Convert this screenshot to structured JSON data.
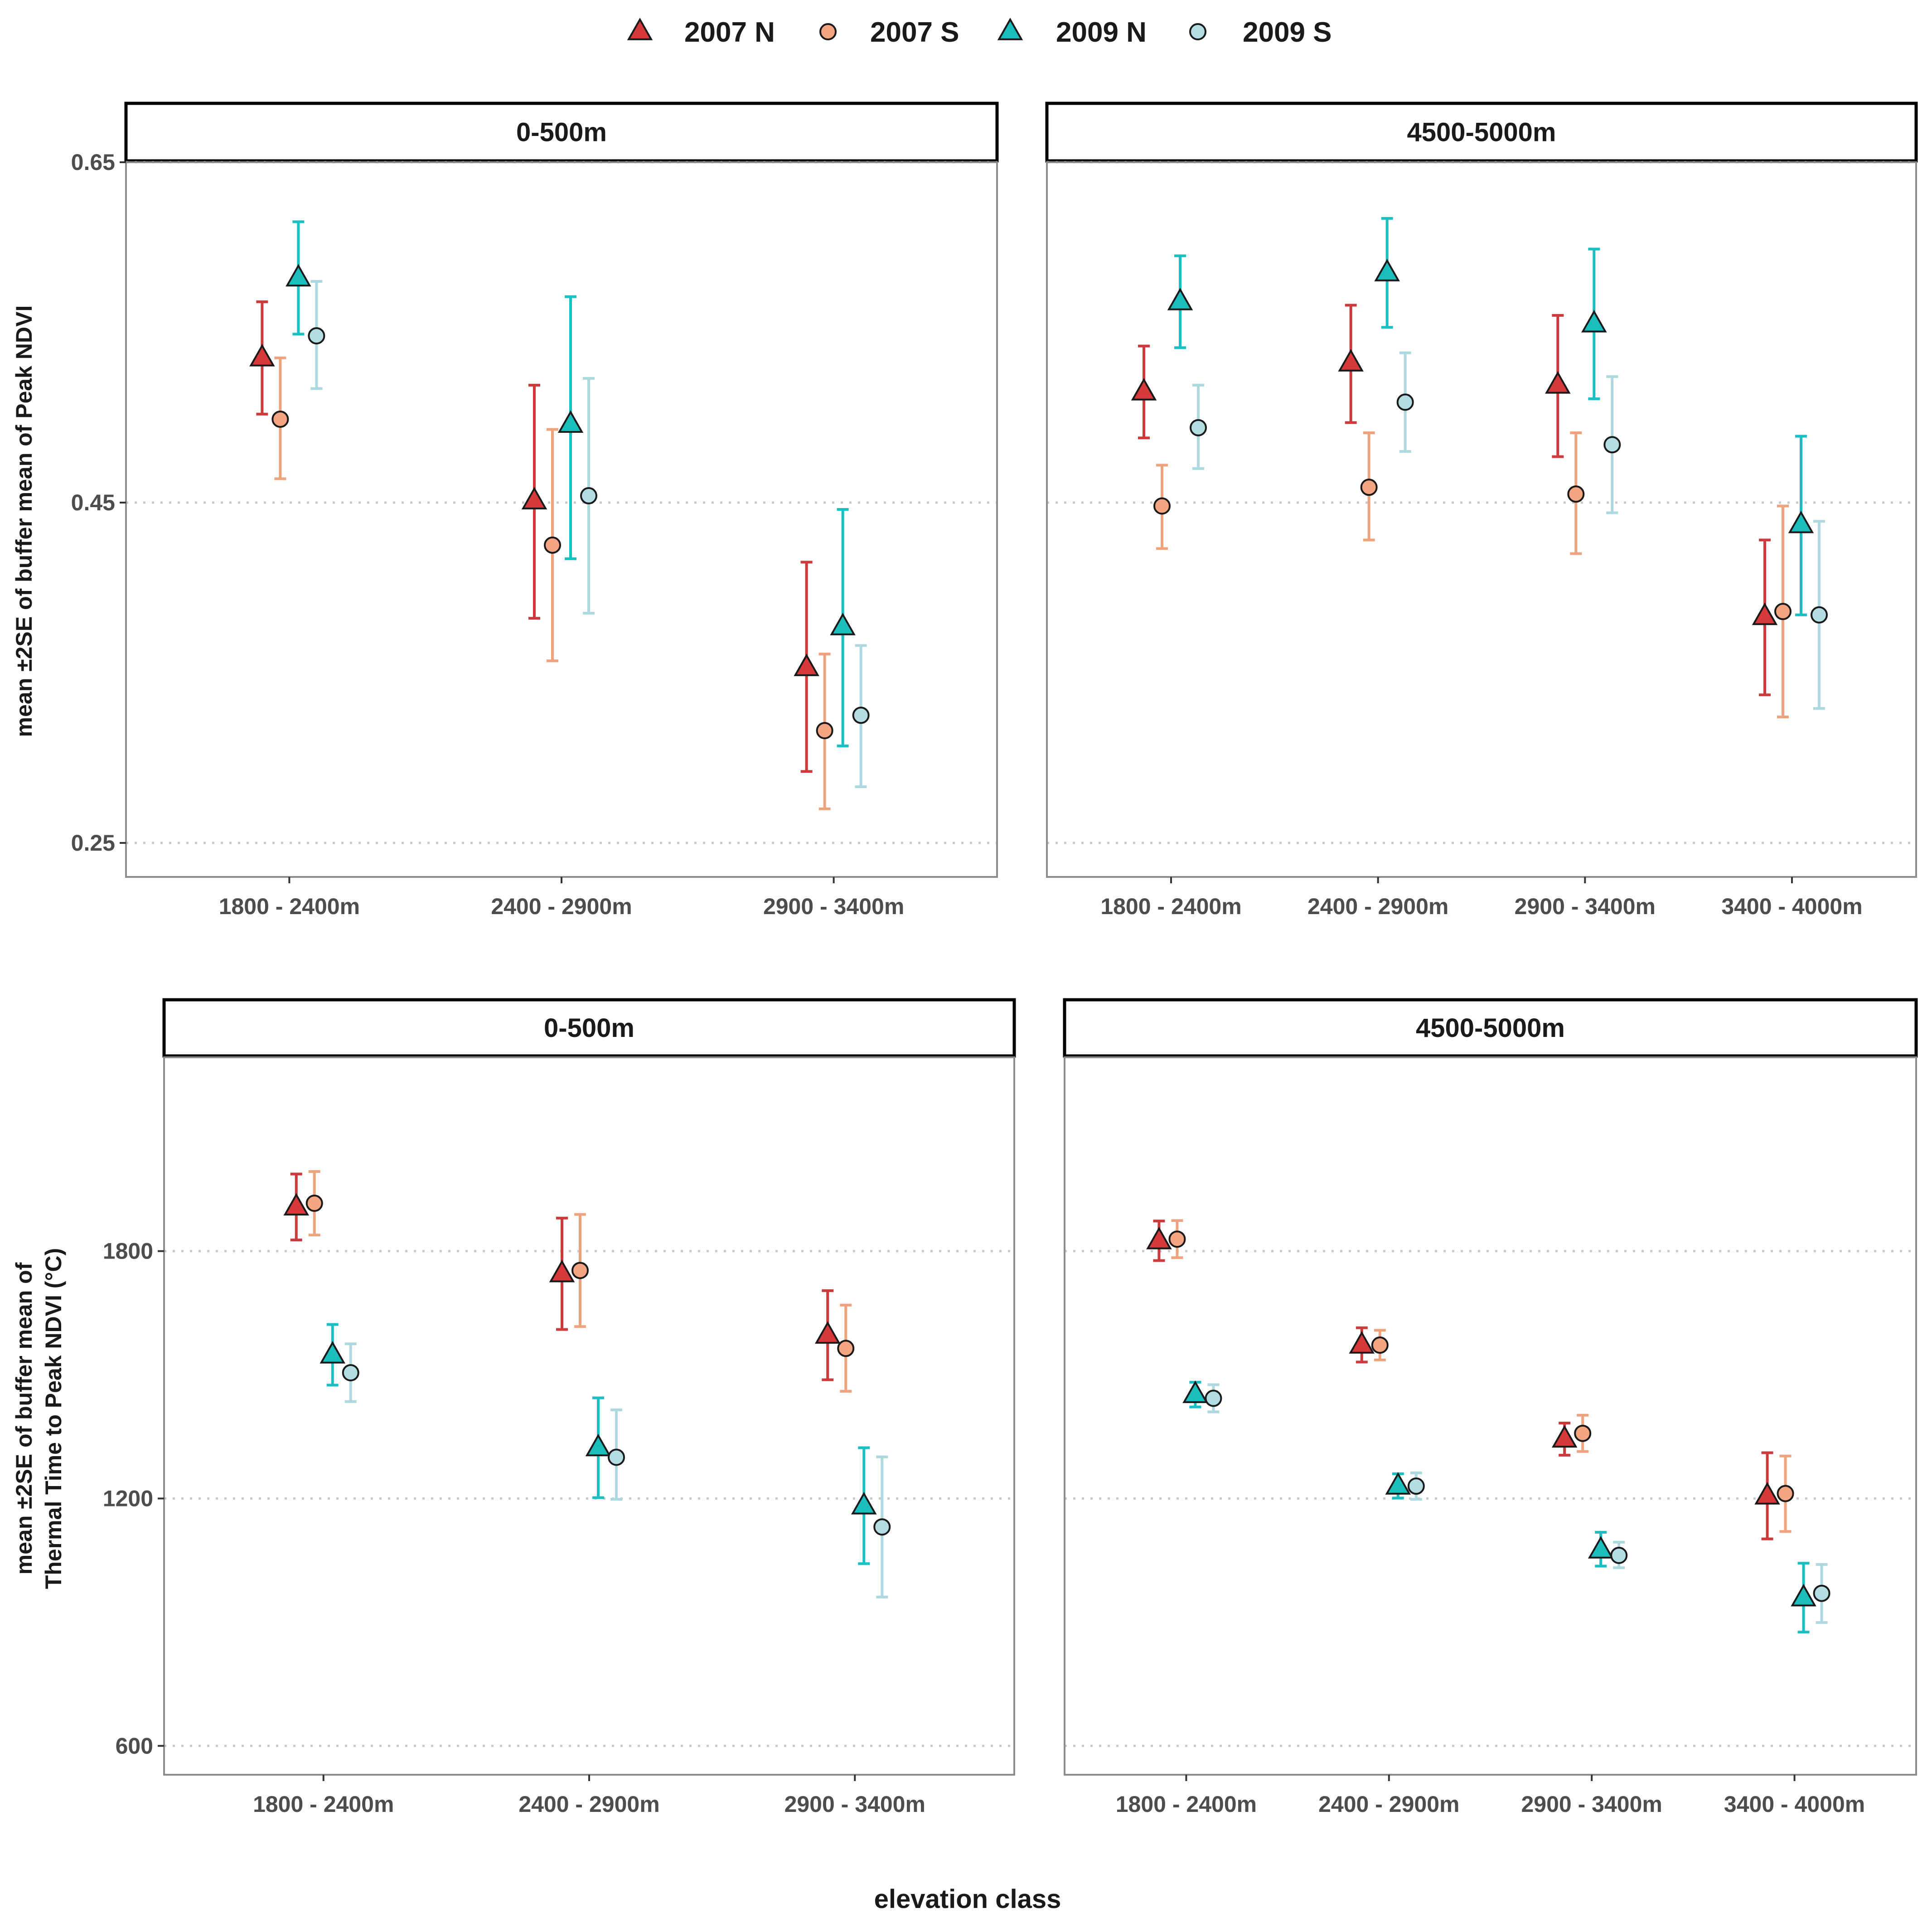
{
  "legend": {
    "items": [
      {
        "label": "2007 N",
        "shape": "triangle",
        "color": "#D7393B",
        "errcolor": "#CC3A3C"
      },
      {
        "label": "2007 S",
        "shape": "circle",
        "color": "#F4A582",
        "errcolor": "#EEA37F"
      },
      {
        "label": "2009 N",
        "shape": "triangle",
        "color": "#1CBDBD",
        "errcolor": "#19BFC2"
      },
      {
        "label": "2009 S",
        "shape": "circle",
        "color": "#B3DCE3",
        "errcolor": "#ADD8E0"
      }
    ]
  },
  "xlabel": "elevation class",
  "chart_data": [
    {
      "type": "scatter",
      "row": 0,
      "ylabel": "mean ±2SE of buffer mean of Peak NDVI",
      "ylim": [
        0.23,
        0.65
      ],
      "yticks": [
        0.25,
        0.45,
        0.65
      ],
      "ytick_labels": [
        "0.25",
        "0.45",
        "0.65"
      ],
      "grid": "horizontal dotted",
      "panels": [
        {
          "strip": "0-500m",
          "categories": [
            "1800 - 2400m",
            "2400 - 2900m",
            "2900 - 3400m"
          ],
          "series": [
            {
              "name": "2007 N",
              "values": [
                0.535,
                0.451,
                0.353
              ],
              "lower": [
                0.502,
                0.382,
                0.292
              ],
              "upper": [
                0.568,
                0.519,
                0.415
              ]
            },
            {
              "name": "2007 S",
              "values": [
                0.499,
                0.425,
                0.316
              ],
              "lower": [
                0.464,
                0.357,
                0.27
              ],
              "upper": [
                0.535,
                0.493,
                0.361
              ]
            },
            {
              "name": "2009 N",
              "values": [
                0.582,
                0.496,
                0.377
              ],
              "lower": [
                0.549,
                0.417,
                0.307
              ],
              "upper": [
                0.615,
                0.571,
                0.446
              ]
            },
            {
              "name": "2009 S",
              "values": [
                0.548,
                0.454,
                0.325
              ],
              "lower": [
                0.517,
                0.385,
                0.283
              ],
              "upper": [
                0.58,
                0.523,
                0.366
              ]
            }
          ]
        },
        {
          "strip": "4500-5000m",
          "categories": [
            "1800 - 2400m",
            "2400 - 2900m",
            "2900 - 3400m",
            "3400 - 4000m"
          ],
          "series": [
            {
              "name": "2007 N",
              "values": [
                0.515,
                0.532,
                0.519,
                0.383
              ],
              "lower": [
                0.488,
                0.497,
                0.477,
                0.337
              ],
              "upper": [
                0.542,
                0.566,
                0.56,
                0.428
              ]
            },
            {
              "name": "2007 S",
              "values": [
                0.448,
                0.459,
                0.455,
                0.386
              ],
              "lower": [
                0.423,
                0.428,
                0.42,
                0.324
              ],
              "upper": [
                0.472,
                0.491,
                0.491,
                0.448
              ]
            },
            {
              "name": "2009 N",
              "values": [
                0.568,
                0.585,
                0.555,
                0.437
              ],
              "lower": [
                0.541,
                0.553,
                0.511,
                0.384
              ],
              "upper": [
                0.595,
                0.617,
                0.599,
                0.489
              ]
            },
            {
              "name": "2009 S",
              "values": [
                0.494,
                0.509,
                0.484,
                0.384
              ],
              "lower": [
                0.47,
                0.48,
                0.444,
                0.329
              ],
              "upper": [
                0.519,
                0.538,
                0.524,
                0.439
              ]
            }
          ]
        }
      ]
    },
    {
      "type": "scatter",
      "row": 1,
      "ylabel": "mean ±2SE of buffer mean of\nThermal Time to Peak NDVI (°C)",
      "ylim": [
        530,
        2270
      ],
      "yticks": [
        600,
        1200,
        1800
      ],
      "ytick_labels": [
        "600",
        "1200",
        "1800"
      ],
      "grid": "horizontal dotted",
      "panels": [
        {
          "strip": "0-500m",
          "categories": [
            "1800 - 2400m",
            "2400 - 2900m",
            "2900 - 3400m"
          ],
          "series": [
            {
              "name": "2007 N",
              "values": [
                1907,
                1745,
                1596
              ],
              "lower": [
                1827,
                1610,
                1488
              ],
              "upper": [
                1987,
                1880,
                1704
              ]
            },
            {
              "name": "2007 S",
              "values": [
                1916,
                1753,
                1564
              ],
              "lower": [
                1839,
                1617,
                1460
              ],
              "upper": [
                1993,
                1889,
                1669
              ]
            },
            {
              "name": "2009 N",
              "values": [
                1548,
                1323,
                1182
              ],
              "lower": [
                1475,
                1202,
                1042
              ],
              "upper": [
                1622,
                1444,
                1323
              ]
            },
            {
              "name": "2009 S",
              "values": [
                1505,
                1300,
                1131
              ],
              "lower": [
                1435,
                1198,
                961
              ],
              "upper": [
                1575,
                1415,
                1301
              ]
            }
          ]
        },
        {
          "strip": "4500-5000m",
          "categories": [
            "1800 - 2400m",
            "2400 - 2900m",
            "2900 - 3400m",
            "3400 - 4000m"
          ],
          "series": [
            {
              "name": "2007 N",
              "values": [
                1825,
                1572,
                1344,
                1206
              ],
              "lower": [
                1777,
                1531,
                1305,
                1102
              ],
              "upper": [
                1873,
                1614,
                1383,
                1311
              ]
            },
            {
              "name": "2007 S",
              "values": [
                1829,
                1572,
                1358,
                1212
              ],
              "lower": [
                1784,
                1536,
                1314,
                1120
              ],
              "upper": [
                1874,
                1608,
                1402,
                1303
              ]
            },
            {
              "name": "2009 N",
              "values": [
                1452,
                1230,
                1075,
                959
              ],
              "lower": [
                1422,
                1201,
                1036,
                876
              ],
              "upper": [
                1482,
                1260,
                1118,
                1043
              ]
            },
            {
              "name": "2009 S",
              "values": [
                1443,
                1230,
                1062,
                970
              ],
              "lower": [
                1410,
                1198,
                1032,
                899
              ],
              "upper": [
                1476,
                1262,
                1094,
                1040
              ]
            }
          ]
        }
      ]
    }
  ]
}
